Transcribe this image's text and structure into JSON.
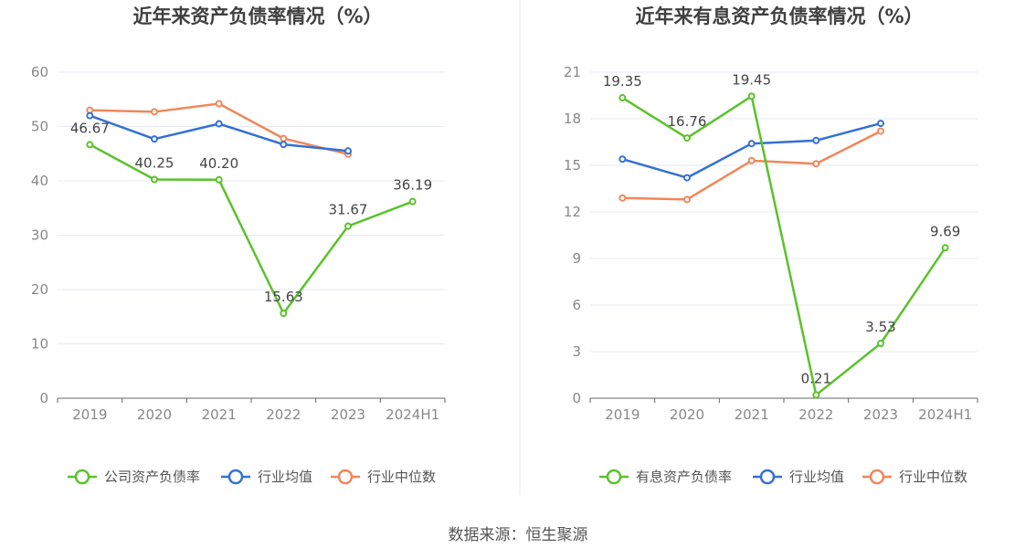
{
  "source_label": "数据来源：恒生聚源",
  "colors": {
    "company": "#5ac22b",
    "industry_avg": "#3470d6",
    "industry_median": "#f0875a",
    "grid": "#e6e9f0",
    "axis": "#666666",
    "divider": "#e8e8e8"
  },
  "chart_data": [
    {
      "type": "line",
      "title": "近年来资产负债率情况（%）",
      "categories": [
        "2019",
        "2020",
        "2021",
        "2022",
        "2023",
        "2024H1"
      ],
      "ylim": [
        0,
        60
      ],
      "yticks": [
        0,
        10,
        20,
        30,
        40,
        50,
        60
      ],
      "grid": true,
      "legend_position": "bottom",
      "series": [
        {
          "name": "公司资产负债率",
          "key": "company",
          "values": [
            46.67,
            40.25,
            40.2,
            15.63,
            31.67,
            36.19
          ],
          "labels": [
            "46.67",
            "40.25",
            "40.20",
            "15.63",
            "31.67",
            "36.19"
          ]
        },
        {
          "name": "行业均值",
          "key": "industry_avg",
          "values": [
            52.0,
            47.7,
            50.5,
            46.7,
            45.5,
            null
          ]
        },
        {
          "name": "行业中位数",
          "key": "industry_median",
          "values": [
            53.0,
            52.7,
            54.2,
            47.8,
            44.9,
            null
          ]
        }
      ]
    },
    {
      "type": "line",
      "title": "近年来有息资产负债率情况（%）",
      "categories": [
        "2019",
        "2020",
        "2021",
        "2022",
        "2023",
        "2024H1"
      ],
      "ylim": [
        0,
        21
      ],
      "yticks": [
        0,
        3,
        6,
        9,
        12,
        15,
        18,
        21
      ],
      "grid": true,
      "legend_position": "bottom",
      "series": [
        {
          "name": "有息资产负债率",
          "key": "company",
          "values": [
            19.35,
            16.76,
            19.45,
            0.21,
            3.53,
            9.69
          ],
          "labels": [
            "19.35",
            "16.76",
            "19.45",
            "0.21",
            "3.53",
            "9.69"
          ]
        },
        {
          "name": "行业均值",
          "key": "industry_avg",
          "values": [
            15.4,
            14.2,
            16.4,
            16.6,
            17.7,
            null
          ]
        },
        {
          "name": "行业中位数",
          "key": "industry_median",
          "values": [
            12.9,
            12.8,
            15.3,
            15.1,
            17.2,
            null
          ]
        }
      ]
    }
  ]
}
